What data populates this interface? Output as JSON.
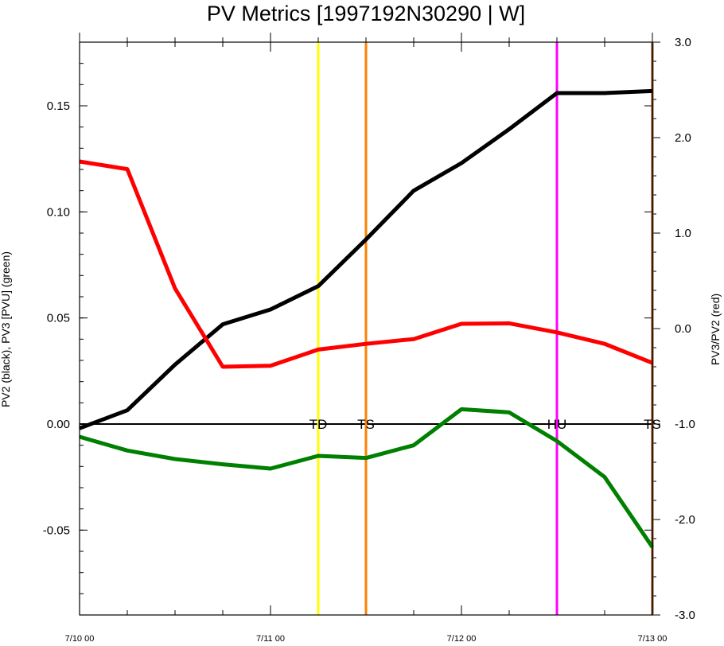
{
  "chart_data": {
    "type": "line",
    "title": "PV Metrics [1997192N30290 | W]",
    "ylabel_left": "PV2 (black), PV3 [PVU] (green)",
    "ylabel_right": "PV3/PV2 (red)",
    "xlabel": "",
    "x_ticks": [
      "7/10 00",
      "7/11 00",
      "7/12 00",
      "7/13 00"
    ],
    "x_hours": [
      0,
      6,
      12,
      18,
      24,
      30,
      36,
      42,
      48,
      54,
      60,
      66,
      72
    ],
    "ylim_left": [
      -0.09,
      0.18
    ],
    "ylim_right": [
      -3.0,
      3.0
    ],
    "left_ticks": [
      "-0.05",
      "0.00",
      "0.05",
      "0.10",
      "0.15"
    ],
    "left_tick_values": [
      -0.05,
      0,
      0.05,
      0.1,
      0.15
    ],
    "right_ticks": [
      "-3.0",
      "-2.0",
      "-1.0",
      "0.0",
      "1.0",
      "2.0",
      "3.0"
    ],
    "right_tick_values": [
      -3,
      -2,
      -1,
      0,
      1,
      2,
      3
    ],
    "zero_line": 0,
    "series": [
      {
        "name": "PV2",
        "color": "#000000",
        "axis": "left",
        "values": [
          -0.002,
          0.0065,
          0.028,
          0.047,
          0.054,
          0.065,
          0.087,
          0.11,
          0.123,
          0.139,
          0.156,
          0.156,
          0.157
        ]
      },
      {
        "name": "PV3",
        "color": "#008000",
        "axis": "left",
        "values": [
          -0.006,
          -0.0125,
          -0.0165,
          -0.019,
          -0.021,
          -0.015,
          -0.016,
          -0.01,
          0.007,
          0.0055,
          -0.008,
          -0.025,
          -0.058
        ]
      },
      {
        "name": "PV3/PV2",
        "color": "#ff0000",
        "axis": "right",
        "values": [
          1.75,
          1.67,
          0.42,
          -0.4,
          -0.39,
          -0.22,
          -0.16,
          -0.11,
          0.05,
          0.055,
          -0.04,
          -0.16,
          -0.36
        ]
      }
    ],
    "stage_markers": [
      {
        "label": "TD",
        "hour": 30,
        "color": "#ffff00"
      },
      {
        "label": "TS",
        "hour": 36,
        "color": "#ff8000"
      },
      {
        "label": "HU",
        "hour": 60,
        "color": "#ff00ff"
      },
      {
        "label": "TS",
        "hour": 72,
        "color": "#8b4513"
      }
    ]
  }
}
